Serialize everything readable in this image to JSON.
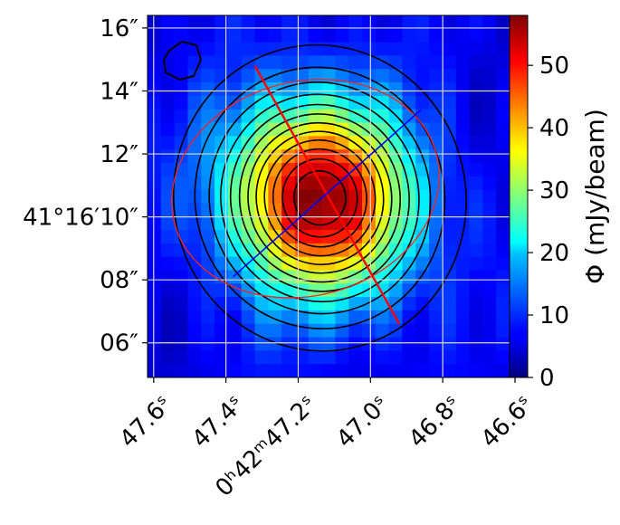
{
  "chart_data": {
    "type": "heatmap",
    "title": "",
    "xlabel": "",
    "ylabel": "",
    "x_ticks": [
      {
        "value": 47.6,
        "label": "47.6ˢ"
      },
      {
        "value": 47.4,
        "label": "47.4ˢ"
      },
      {
        "value": 47.2,
        "label": "0ʰ42ᵐ47.2ˢ"
      },
      {
        "value": 47.0,
        "label": "47.0ˢ"
      },
      {
        "value": 46.8,
        "label": "46.8ˢ"
      },
      {
        "value": 46.6,
        "label": "46.6ˢ"
      }
    ],
    "y_ticks": [
      {
        "value": 16,
        "label": "16″"
      },
      {
        "value": 14,
        "label": "14″"
      },
      {
        "value": 12,
        "label": "12″"
      },
      {
        "value": 10,
        "label": "41°16′10″"
      },
      {
        "value": 8,
        "label": "08″"
      },
      {
        "value": 6,
        "label": "06″"
      }
    ],
    "xlim": [
      47.617,
      46.615
    ],
    "ylim": [
      4.9,
      16.4
    ],
    "grid": true,
    "colorbar": {
      "label": "Φ (mJy/beam)",
      "range": [
        0,
        58
      ],
      "ticks": [
        0,
        10,
        20,
        30,
        40,
        50
      ],
      "colormap": "jet"
    },
    "peak": {
      "ra_s": 47.14,
      "dec_arcsec": 10.6,
      "value": 58
    },
    "background_mJy": 6,
    "contour_levels": [
      6,
      10,
      14,
      18,
      22,
      26,
      30,
      34,
      38,
      42,
      46,
      50,
      54
    ],
    "slices": [
      {
        "color": "#ff0000",
        "from": [
          47.32,
          14.8
        ],
        "to": [
          46.92,
          6.6
        ]
      },
      {
        "color": "#0000ff",
        "from": [
          47.38,
          8.1
        ],
        "to": [
          46.86,
          13.4
        ]
      }
    ],
    "beam_ellipse": {
      "color": "#ff2020",
      "center": [
        47.18,
        10.9
      ],
      "width_arcsec": 8.6,
      "height_arcsec": 6.8,
      "angle_deg": -15
    }
  }
}
